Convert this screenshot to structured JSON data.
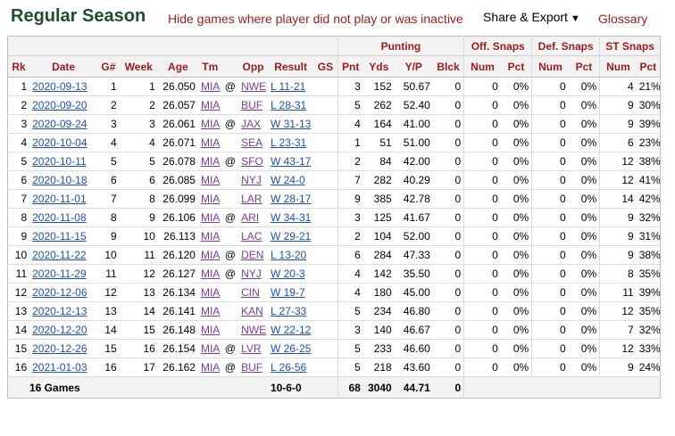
{
  "header": {
    "title": "Regular Season",
    "hide_link": "Hide games where player did not play or was inactive",
    "share_label": "Share & Export",
    "share_caret": "▼",
    "glossary_label": "Glossary"
  },
  "over_headers": {
    "punting": "Punting",
    "off_snaps": "Off. Snaps",
    "def_snaps": "Def. Snaps",
    "st_snaps": "ST Snaps"
  },
  "columns": [
    "Rk",
    "Date",
    "G#",
    "Week",
    "Age",
    "Tm",
    "",
    "Opp",
    "Result",
    "GS",
    "Pnt",
    "Yds",
    "Y/P",
    "Blck",
    "Num",
    "Pct",
    "Num",
    "Pct",
    "Num",
    "Pct"
  ],
  "rows": [
    {
      "rk": "1",
      "date": "2020-09-13",
      "g": "1",
      "week": "1",
      "age": "26.050",
      "tm": "MIA",
      "at": "@",
      "opp": "NWE",
      "result": "L 11-21",
      "gs": "",
      "pnt": "3",
      "yds": "152",
      "yp": "50.67",
      "blck": "0",
      "off_num": "0",
      "off_pct": "0%",
      "def_num": "0",
      "def_pct": "0%",
      "st_num": "4",
      "st_pct": "21%"
    },
    {
      "rk": "2",
      "date": "2020-09-20",
      "g": "2",
      "week": "2",
      "age": "26.057",
      "tm": "MIA",
      "at": "",
      "opp": "BUF",
      "result": "L 28-31",
      "gs": "",
      "pnt": "5",
      "yds": "262",
      "yp": "52.40",
      "blck": "0",
      "off_num": "0",
      "off_pct": "0%",
      "def_num": "0",
      "def_pct": "0%",
      "st_num": "9",
      "st_pct": "30%"
    },
    {
      "rk": "3",
      "date": "2020-09-24",
      "g": "3",
      "week": "3",
      "age": "26.061",
      "tm": "MIA",
      "at": "@",
      "opp": "JAX",
      "result": "W 31-13",
      "gs": "",
      "pnt": "4",
      "yds": "164",
      "yp": "41.00",
      "blck": "0",
      "off_num": "0",
      "off_pct": "0%",
      "def_num": "0",
      "def_pct": "0%",
      "st_num": "9",
      "st_pct": "39%"
    },
    {
      "rk": "4",
      "date": "2020-10-04",
      "g": "4",
      "week": "4",
      "age": "26.071",
      "tm": "MIA",
      "at": "",
      "opp": "SEA",
      "result": "L 23-31",
      "gs": "",
      "pnt": "1",
      "yds": "51",
      "yp": "51.00",
      "blck": "0",
      "off_num": "0",
      "off_pct": "0%",
      "def_num": "0",
      "def_pct": "0%",
      "st_num": "6",
      "st_pct": "23%"
    },
    {
      "rk": "5",
      "date": "2020-10-11",
      "g": "5",
      "week": "5",
      "age": "26.078",
      "tm": "MIA",
      "at": "@",
      "opp": "SFO",
      "result": "W 43-17",
      "gs": "",
      "pnt": "2",
      "yds": "84",
      "yp": "42.00",
      "blck": "0",
      "off_num": "0",
      "off_pct": "0%",
      "def_num": "0",
      "def_pct": "0%",
      "st_num": "12",
      "st_pct": "38%"
    },
    {
      "rk": "6",
      "date": "2020-10-18",
      "g": "6",
      "week": "6",
      "age": "26.085",
      "tm": "MIA",
      "at": "",
      "opp": "NYJ",
      "result": "W 24-0",
      "gs": "",
      "pnt": "7",
      "yds": "282",
      "yp": "40.29",
      "blck": "0",
      "off_num": "0",
      "off_pct": "0%",
      "def_num": "0",
      "def_pct": "0%",
      "st_num": "12",
      "st_pct": "41%"
    },
    {
      "rk": "7",
      "date": "2020-11-01",
      "g": "7",
      "week": "8",
      "age": "26.099",
      "tm": "MIA",
      "at": "",
      "opp": "LAR",
      "result": "W 28-17",
      "gs": "",
      "pnt": "9",
      "yds": "385",
      "yp": "42.78",
      "blck": "0",
      "off_num": "0",
      "off_pct": "0%",
      "def_num": "0",
      "def_pct": "0%",
      "st_num": "14",
      "st_pct": "42%"
    },
    {
      "rk": "8",
      "date": "2020-11-08",
      "g": "8",
      "week": "9",
      "age": "26.106",
      "tm": "MIA",
      "at": "@",
      "opp": "ARI",
      "result": "W 34-31",
      "gs": "",
      "pnt": "3",
      "yds": "125",
      "yp": "41.67",
      "blck": "0",
      "off_num": "0",
      "off_pct": "0%",
      "def_num": "0",
      "def_pct": "0%",
      "st_num": "9",
      "st_pct": "32%"
    },
    {
      "rk": "9",
      "date": "2020-11-15",
      "g": "9",
      "week": "10",
      "age": "26.113",
      "tm": "MIA",
      "at": "",
      "opp": "LAC",
      "result": "W 29-21",
      "gs": "",
      "pnt": "2",
      "yds": "104",
      "yp": "52.00",
      "blck": "0",
      "off_num": "0",
      "off_pct": "0%",
      "def_num": "0",
      "def_pct": "0%",
      "st_num": "9",
      "st_pct": "31%"
    },
    {
      "rk": "10",
      "date": "2020-11-22",
      "g": "10",
      "week": "11",
      "age": "26.120",
      "tm": "MIA",
      "at": "@",
      "opp": "DEN",
      "result": "L 13-20",
      "gs": "",
      "pnt": "6",
      "yds": "284",
      "yp": "47.33",
      "blck": "0",
      "off_num": "0",
      "off_pct": "0%",
      "def_num": "0",
      "def_pct": "0%",
      "st_num": "9",
      "st_pct": "38%"
    },
    {
      "rk": "11",
      "date": "2020-11-29",
      "g": "11",
      "week": "12",
      "age": "26.127",
      "tm": "MIA",
      "at": "@",
      "opp": "NYJ",
      "result": "W 20-3",
      "gs": "",
      "pnt": "4",
      "yds": "142",
      "yp": "35.50",
      "blck": "0",
      "off_num": "0",
      "off_pct": "0%",
      "def_num": "0",
      "def_pct": "0%",
      "st_num": "8",
      "st_pct": "35%"
    },
    {
      "rk": "12",
      "date": "2020-12-06",
      "g": "12",
      "week": "13",
      "age": "26.134",
      "tm": "MIA",
      "at": "",
      "opp": "CIN",
      "result": "W 19-7",
      "gs": "",
      "pnt": "4",
      "yds": "180",
      "yp": "45.00",
      "blck": "0",
      "off_num": "0",
      "off_pct": "0%",
      "def_num": "0",
      "def_pct": "0%",
      "st_num": "11",
      "st_pct": "39%"
    },
    {
      "rk": "13",
      "date": "2020-12-13",
      "g": "13",
      "week": "14",
      "age": "26.141",
      "tm": "MIA",
      "at": "",
      "opp": "KAN",
      "result": "L 27-33",
      "gs": "",
      "pnt": "5",
      "yds": "234",
      "yp": "46.80",
      "blck": "0",
      "off_num": "0",
      "off_pct": "0%",
      "def_num": "0",
      "def_pct": "0%",
      "st_num": "12",
      "st_pct": "35%"
    },
    {
      "rk": "14",
      "date": "2020-12-20",
      "g": "14",
      "week": "15",
      "age": "26.148",
      "tm": "MIA",
      "at": "",
      "opp": "NWE",
      "result": "W 22-12",
      "gs": "",
      "pnt": "3",
      "yds": "140",
      "yp": "46.67",
      "blck": "0",
      "off_num": "0",
      "off_pct": "0%",
      "def_num": "0",
      "def_pct": "0%",
      "st_num": "7",
      "st_pct": "32%"
    },
    {
      "rk": "15",
      "date": "2020-12-26",
      "g": "15",
      "week": "16",
      "age": "26.154",
      "tm": "MIA",
      "at": "@",
      "opp": "LVR",
      "result": "W 26-25",
      "gs": "",
      "pnt": "5",
      "yds": "233",
      "yp": "46.60",
      "blck": "0",
      "off_num": "0",
      "off_pct": "0%",
      "def_num": "0",
      "def_pct": "0%",
      "st_num": "12",
      "st_pct": "33%"
    },
    {
      "rk": "16",
      "date": "2021-01-03",
      "g": "16",
      "week": "17",
      "age": "26.162",
      "tm": "MIA",
      "at": "@",
      "opp": "BUF",
      "result": "L 26-56",
      "gs": "",
      "pnt": "5",
      "yds": "218",
      "yp": "43.60",
      "blck": "0",
      "off_num": "0",
      "off_pct": "0%",
      "def_num": "0",
      "def_pct": "0%",
      "st_num": "9",
      "st_pct": "24%"
    }
  ],
  "totals": {
    "games": "16 Games",
    "result": "10-6-0",
    "pnt": "68",
    "yds": "3040",
    "yp": "44.71",
    "blck": "0"
  }
}
